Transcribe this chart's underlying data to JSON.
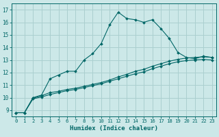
{
  "xlabel": "Humidex (Indice chaleur)",
  "bg_color": "#cce8e8",
  "grid_color": "#aacfcf",
  "line_color": "#006666",
  "xlim": [
    -0.5,
    23.5
  ],
  "ylim": [
    8.5,
    17.5
  ],
  "xticks": [
    0,
    1,
    2,
    3,
    4,
    5,
    6,
    7,
    8,
    9,
    10,
    11,
    12,
    13,
    14,
    15,
    16,
    17,
    18,
    19,
    20,
    21,
    22,
    23
  ],
  "yticks": [
    9,
    10,
    11,
    12,
    13,
    14,
    15,
    16,
    17
  ],
  "line1_x": [
    0,
    1,
    2,
    3,
    4,
    5,
    6,
    7,
    8,
    9,
    10,
    11,
    12,
    13,
    14,
    15,
    16,
    17,
    18,
    19,
    20,
    21,
    22,
    23
  ],
  "line1_y": [
    8.8,
    8.8,
    10.0,
    10.2,
    11.5,
    11.8,
    12.1,
    12.1,
    13.0,
    13.5,
    14.3,
    15.8,
    16.8,
    16.3,
    16.2,
    16.0,
    16.2,
    15.5,
    14.7,
    13.6,
    13.2,
    13.1,
    13.3,
    13.2
  ],
  "line2_x": [
    0,
    1,
    2,
    3,
    4,
    5,
    6,
    7,
    8,
    9,
    10,
    11,
    12,
    13,
    14,
    15,
    16,
    17,
    18,
    19,
    20,
    21,
    22,
    23
  ],
  "line2_y": [
    8.8,
    8.8,
    9.95,
    10.15,
    10.4,
    10.5,
    10.65,
    10.75,
    10.9,
    11.05,
    11.2,
    11.4,
    11.65,
    11.85,
    12.1,
    12.25,
    12.5,
    12.7,
    12.9,
    13.05,
    13.15,
    13.2,
    13.25,
    13.2
  ],
  "line3_x": [
    0,
    1,
    2,
    3,
    4,
    5,
    6,
    7,
    8,
    9,
    10,
    11,
    12,
    13,
    14,
    15,
    16,
    17,
    18,
    19,
    20,
    21,
    22,
    23
  ],
  "line3_y": [
    8.8,
    8.8,
    9.9,
    10.05,
    10.25,
    10.4,
    10.55,
    10.65,
    10.8,
    10.95,
    11.1,
    11.3,
    11.5,
    11.7,
    11.9,
    12.05,
    12.3,
    12.5,
    12.7,
    12.85,
    12.95,
    13.0,
    13.05,
    13.0
  ]
}
